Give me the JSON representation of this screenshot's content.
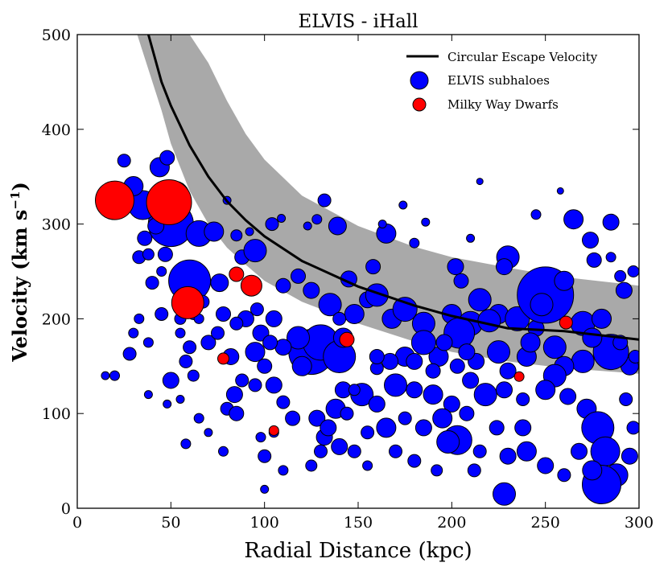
{
  "chart_data": {
    "type": "scatter",
    "title": "ELVIS - iHall",
    "xlabel": "Radial Distance (kpc)",
    "ylabel_main": "Velocity (km s",
    "ylabel_exp": "−1",
    "ylabel_close": ")",
    "xlim": [
      0,
      300
    ],
    "ylim": [
      0,
      500
    ],
    "xticks": [
      "0",
      "50",
      "100",
      "150",
      "200",
      "250",
      "300"
    ],
    "yticks": [
      "0",
      "100",
      "200",
      "300",
      "400",
      "500"
    ],
    "colors": {
      "band": "#a9a9a9",
      "curve": "#000000",
      "subhalo": "#0000ff",
      "dwarf": "#ff0000"
    },
    "legend": {
      "position": "top-right",
      "entries": [
        "Circular Escape Velocity",
        "ELVIS subhaloes",
        "Milky Way Dwarfs"
      ]
    },
    "escape_velocity": {
      "name": "Circular Escape Velocity",
      "x": [
        38,
        45,
        50,
        60,
        70,
        80,
        90,
        100,
        120,
        150,
        180,
        200,
        230,
        260,
        300
      ],
      "y": [
        500,
        450,
        425,
        383,
        350,
        324,
        304,
        287,
        261,
        234,
        214,
        203,
        190,
        187,
        178
      ],
      "band_upper": [
        500,
        500,
        500,
        500,
        470,
        430,
        395,
        368,
        330,
        298,
        276,
        265,
        254,
        244,
        235
      ],
      "band_upper_start_x": 48,
      "band_lower": [
        500,
        420,
        385,
        335,
        300,
        275,
        257,
        240,
        218,
        195,
        176,
        165,
        155,
        148,
        142
      ],
      "band_lower_start_x": 32
    },
    "series": [
      {
        "name": "ELVIS subhaloes",
        "marker_scale": "size ∝ subhalo mass",
        "points": [
          [
            50,
            300,
            28
          ],
          [
            60,
            240,
            26
          ],
          [
            52,
            330,
            18
          ],
          [
            65,
            290,
            16
          ],
          [
            35,
            320,
            18
          ],
          [
            44,
            360,
            12
          ],
          [
            48,
            370,
            9
          ],
          [
            25,
            367,
            8
          ],
          [
            30,
            340,
            12
          ],
          [
            36,
            285,
            9
          ],
          [
            42,
            298,
            10
          ],
          [
            33,
            265,
            8
          ],
          [
            47,
            268,
            9
          ],
          [
            40,
            238,
            8
          ],
          [
            45,
            205,
            8
          ],
          [
            28,
            163,
            8
          ],
          [
            30,
            185,
            6
          ],
          [
            33,
            200,
            6
          ],
          [
            38,
            175,
            6
          ],
          [
            55,
            200,
            7
          ],
          [
            55,
            185,
            6
          ],
          [
            60,
            170,
            8
          ],
          [
            70,
            175,
            9
          ],
          [
            73,
            292,
            12
          ],
          [
            76,
            238,
            11
          ],
          [
            88,
            265,
            9
          ],
          [
            95,
            272,
            14
          ],
          [
            104,
            300,
            8
          ],
          [
            118,
            245,
            9
          ],
          [
            132,
            325,
            8
          ],
          [
            128,
            305,
            6
          ],
          [
            139,
            298,
            11
          ],
          [
            145,
            242,
            10
          ],
          [
            158,
            255,
            9
          ],
          [
            165,
            290,
            12
          ],
          [
            180,
            280,
            6
          ],
          [
            125,
            165,
            28
          ],
          [
            130,
            175,
            22
          ],
          [
            140,
            160,
            20
          ],
          [
            118,
            180,
            14
          ],
          [
            120,
            150,
            12
          ],
          [
            110,
            170,
            10
          ],
          [
            135,
            215,
            14
          ],
          [
            148,
            205,
            12
          ],
          [
            155,
            220,
            10
          ],
          [
            160,
            225,
            14
          ],
          [
            168,
            200,
            12
          ],
          [
            175,
            210,
            15
          ],
          [
            185,
            195,
            14
          ],
          [
            200,
            205,
            12
          ],
          [
            210,
            195,
            15
          ],
          [
            215,
            220,
            14
          ],
          [
            225,
            205,
            12
          ],
          [
            235,
            200,
            15
          ],
          [
            245,
            190,
            10
          ],
          [
            250,
            225,
            35
          ],
          [
            248,
            215,
            14
          ],
          [
            260,
            240,
            12
          ],
          [
            270,
            195,
            15
          ],
          [
            280,
            200,
            12
          ],
          [
            292,
            230,
            10
          ],
          [
            297,
            250,
            7
          ],
          [
            285,
            302,
            10
          ],
          [
            265,
            305,
            12
          ],
          [
            274,
            283,
            10
          ],
          [
            276,
            262,
            9
          ],
          [
            295,
            150,
            11
          ],
          [
            293,
            115,
            8
          ],
          [
            285,
            165,
            22
          ],
          [
            270,
            155,
            14
          ],
          [
            260,
            150,
            12
          ],
          [
            255,
            140,
            14
          ],
          [
            240,
            160,
            12
          ],
          [
            230,
            145,
            10
          ],
          [
            225,
            165,
            14
          ],
          [
            213,
            155,
            10
          ],
          [
            203,
            150,
            9
          ],
          [
            193,
            160,
            12
          ],
          [
            185,
            175,
            15
          ],
          [
            175,
            160,
            12
          ],
          [
            167,
            155,
            10
          ],
          [
            160,
            148,
            8
          ],
          [
            204,
            185,
            19
          ],
          [
            202,
            255,
            10
          ],
          [
            205,
            240,
            9
          ],
          [
            230,
            265,
            14
          ],
          [
            228,
            255,
            10
          ],
          [
            220,
            198,
            14
          ],
          [
            196,
            175,
            10
          ],
          [
            180,
            155,
            10
          ],
          [
            170,
            130,
            14
          ],
          [
            180,
            125,
            10
          ],
          [
            190,
            120,
            12
          ],
          [
            200,
            110,
            10
          ],
          [
            210,
            135,
            10
          ],
          [
            218,
            120,
            14
          ],
          [
            228,
            125,
            10
          ],
          [
            238,
            115,
            8
          ],
          [
            250,
            125,
            12
          ],
          [
            262,
            118,
            10
          ],
          [
            272,
            105,
            12
          ],
          [
            278,
            85,
            20
          ],
          [
            282,
            60,
            18
          ],
          [
            288,
            35,
            14
          ],
          [
            280,
            25,
            24
          ],
          [
            275,
            40,
            12
          ],
          [
            268,
            60,
            10
          ],
          [
            260,
            35,
            8
          ],
          [
            250,
            45,
            10
          ],
          [
            240,
            60,
            12
          ],
          [
            230,
            55,
            10
          ],
          [
            228,
            15,
            14
          ],
          [
            215,
            60,
            8
          ],
          [
            212,
            40,
            8
          ],
          [
            203,
            72,
            18
          ],
          [
            195,
            95,
            12
          ],
          [
            185,
            85,
            10
          ],
          [
            175,
            95,
            8
          ],
          [
            165,
            85,
            12
          ],
          [
            155,
            80,
            8
          ],
          [
            148,
            60,
            8
          ],
          [
            140,
            65,
            10
          ],
          [
            132,
            75,
            10
          ],
          [
            128,
            95,
            10
          ],
          [
            138,
            105,
            12
          ],
          [
            142,
            125,
            10
          ],
          [
            152,
            120,
            14
          ],
          [
            160,
            110,
            10
          ],
          [
            170,
            60,
            8
          ],
          [
            180,
            50,
            8
          ],
          [
            192,
            40,
            7
          ],
          [
            155,
            45,
            6
          ],
          [
            130,
            60,
            8
          ],
          [
            125,
            45,
            7
          ],
          [
            115,
            95,
            9
          ],
          [
            110,
            112,
            8
          ],
          [
            105,
            130,
            10
          ],
          [
            100,
            150,
            9
          ],
          [
            95,
            130,
            8
          ],
          [
            88,
            135,
            8
          ],
          [
            84,
            120,
            10
          ],
          [
            80,
            105,
            8
          ],
          [
            85,
            100,
            9
          ],
          [
            82,
            160,
            10
          ],
          [
            95,
            165,
            12
          ],
          [
            98,
            185,
            10
          ],
          [
            103,
            175,
            9
          ],
          [
            90,
            200,
            10
          ],
          [
            96,
            210,
            8
          ],
          [
            105,
            200,
            10
          ],
          [
            110,
            235,
            9
          ],
          [
            125,
            230,
            10
          ],
          [
            142,
            180,
            12
          ],
          [
            140,
            200,
            8
          ],
          [
            67,
            218,
            8
          ],
          [
            62,
            205,
            7
          ],
          [
            20,
            140,
            6
          ],
          [
            15,
            140,
            5
          ],
          [
            65,
            200,
            6
          ],
          [
            75,
            185,
            8
          ],
          [
            78,
            205,
            9
          ],
          [
            85,
            195,
            8
          ],
          [
            50,
            135,
            10
          ],
          [
            58,
            155,
            8
          ],
          [
            62,
            140,
            7
          ],
          [
            38,
            268,
            7
          ],
          [
            45,
            250,
            6
          ],
          [
            80,
            325,
            5
          ],
          [
            85,
            288,
            7
          ],
          [
            92,
            292,
            5
          ],
          [
            109,
            306,
            5
          ],
          [
            123,
            298,
            5
          ],
          [
            163,
            300,
            5
          ],
          [
            210,
            285,
            5
          ],
          [
            174,
            320,
            5
          ],
          [
            186,
            302,
            5
          ],
          [
            258,
            335,
            4
          ],
          [
            245,
            310,
            6
          ],
          [
            285,
            265,
            6
          ],
          [
            290,
            245,
            7
          ],
          [
            215,
            345,
            4
          ],
          [
            148,
            125,
            7
          ],
          [
            144,
            100,
            8
          ],
          [
            134,
            85,
            10
          ],
          [
            160,
            160,
            9
          ],
          [
            190,
            145,
            9
          ],
          [
            208,
            165,
            10
          ],
          [
            242,
            175,
            12
          ],
          [
            255,
            170,
            14
          ],
          [
            275,
            180,
            12
          ],
          [
            290,
            175,
            9
          ],
          [
            298,
            160,
            8
          ],
          [
            297,
            85,
            8
          ],
          [
            295,
            55,
            10
          ],
          [
            238,
            85,
            10
          ],
          [
            224,
            85,
            9
          ],
          [
            208,
            100,
            9
          ],
          [
            198,
            70,
            14
          ],
          [
            100,
            55,
            8
          ],
          [
            105,
            80,
            6
          ],
          [
            98,
            75,
            6
          ],
          [
            110,
            40,
            6
          ],
          [
            100,
            20,
            5
          ],
          [
            78,
            60,
            6
          ],
          [
            70,
            80,
            5
          ],
          [
            65,
            95,
            6
          ],
          [
            58,
            68,
            6
          ],
          [
            55,
            115,
            5
          ],
          [
            48,
            110,
            5
          ],
          [
            38,
            120,
            5
          ]
        ]
      },
      {
        "name": "Milky Way Dwarfs",
        "points": [
          [
            20,
            325,
            24
          ],
          [
            49,
            323,
            28
          ],
          [
            59,
            217,
            20
          ],
          [
            85,
            247,
            9
          ],
          [
            93,
            235,
            13
          ],
          [
            78,
            158,
            7
          ],
          [
            105,
            82,
            6
          ],
          [
            144,
            178,
            9
          ],
          [
            236,
            139,
            6
          ],
          [
            261,
            196,
            8
          ]
        ]
      }
    ]
  }
}
